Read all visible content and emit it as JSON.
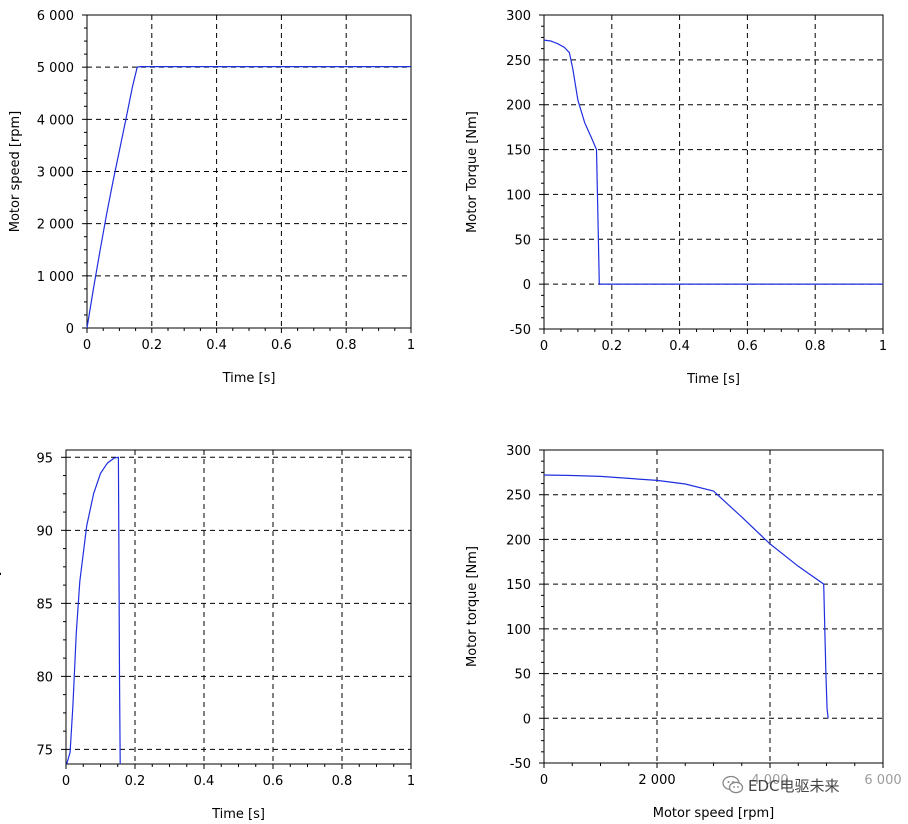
{
  "chart_data": [
    {
      "type": "line",
      "xlabel": "Time [s]",
      "ylabel": "Motor speed [rpm]",
      "xlim": [
        0,
        1
      ],
      "ylim": [
        0,
        6000
      ],
      "xticks": [
        0,
        0.2,
        0.4,
        0.6,
        0.8,
        1
      ],
      "xtick_labels": [
        "0",
        "0.2",
        "0.4",
        "0.6",
        "0.8",
        "1"
      ],
      "yticks": [
        0,
        1000,
        2000,
        3000,
        4000,
        5000,
        6000
      ],
      "ytick_labels": [
        "0",
        "1 000",
        "2 000",
        "3 000",
        "4 000",
        "5 000",
        "6 000"
      ],
      "grid": true,
      "series": [
        {
          "name": "speed",
          "color": "#1f2fe0",
          "x": [
            0,
            0.02,
            0.04,
            0.06,
            0.08,
            0.1,
            0.12,
            0.14,
            0.155,
            0.165,
            0.2,
            0.4,
            0.6,
            0.8,
            1.0
          ],
          "y": [
            0,
            760,
            1480,
            2160,
            2800,
            3400,
            4000,
            4620,
            5000,
            5010,
            5010,
            5010,
            5010,
            5010,
            5010
          ]
        }
      ]
    },
    {
      "type": "line",
      "xlabel": "Time [s]",
      "ylabel": "Motor Torque [Nm]",
      "xlim": [
        0,
        1
      ],
      "ylim": [
        -50,
        300
      ],
      "xticks": [
        0,
        0.2,
        0.4,
        0.6,
        0.8,
        1
      ],
      "xtick_labels": [
        "0",
        "0.2",
        "0.4",
        "0.6",
        "0.8",
        "1"
      ],
      "yticks": [
        -50,
        0,
        50,
        100,
        150,
        200,
        250,
        300
      ],
      "ytick_labels": [
        "-50",
        "0",
        "50",
        "100",
        "150",
        "200",
        "250",
        "300"
      ],
      "grid": true,
      "series": [
        {
          "name": "torque",
          "color": "#1f2fe0",
          "x": [
            0,
            0.02,
            0.04,
            0.06,
            0.075,
            0.085,
            0.1,
            0.12,
            0.14,
            0.155,
            0.16,
            0.163,
            0.2,
            0.6,
            1.0
          ],
          "y": [
            272,
            271,
            268,
            264,
            258,
            240,
            205,
            180,
            163,
            150,
            60,
            0,
            0,
            0,
            0
          ]
        }
      ]
    },
    {
      "type": "line",
      "xlabel": "Time [s]",
      "ylabel": "Motor efficiency [%]",
      "xlim": [
        0,
        1
      ],
      "ylim": [
        74,
        95.5
      ],
      "xticks": [
        0,
        0.2,
        0.4,
        0.6,
        0.8,
        1
      ],
      "xtick_labels": [
        "0",
        "0.2",
        "0.4",
        "0.6",
        "0.8",
        "1"
      ],
      "yticks": [
        75,
        80,
        85,
        90,
        95
      ],
      "ytick_labels": [
        "75",
        "80",
        "85",
        "90",
        "95"
      ],
      "grid": true,
      "series": [
        {
          "name": "efficiency",
          "color": "#1f2fe0",
          "x": [
            0.002,
            0.012,
            0.02,
            0.03,
            0.04,
            0.06,
            0.08,
            0.1,
            0.12,
            0.14,
            0.152,
            0.153,
            0.155,
            0.157
          ],
          "y": [
            74,
            74.8,
            78,
            83,
            86.5,
            90.3,
            92.5,
            93.9,
            94.6,
            94.95,
            95,
            90,
            80,
            74
          ]
        }
      ]
    },
    {
      "type": "line",
      "xlabel": "Motor speed [rpm]",
      "ylabel": "Motor torque [Nm]",
      "xlim": [
        0,
        6000
      ],
      "ylim": [
        -50,
        300
      ],
      "xticks": [
        0,
        2000,
        4000,
        6000
      ],
      "xtick_labels": [
        "0",
        "2 000",
        "4 000",
        "6 000"
      ],
      "yticks": [
        -50,
        0,
        50,
        100,
        150,
        200,
        250,
        300
      ],
      "ytick_labels": [
        "-50",
        "0",
        "50",
        "100",
        "150",
        "200",
        "250",
        "300"
      ],
      "grid": true,
      "series": [
        {
          "name": "torque-speed",
          "color": "#1f2fe0",
          "x": [
            0,
            500,
            1000,
            2000,
            2500,
            3000,
            3500,
            4000,
            4500,
            4950,
            4970,
            4990,
            5010,
            5030
          ],
          "y": [
            272,
            271.5,
            270.5,
            266,
            262,
            254,
            225,
            195,
            170,
            150,
            100,
            50,
            10,
            0
          ]
        }
      ]
    }
  ],
  "watermark": {
    "text": "EDC电驱未来",
    "icon": "wechat-icon"
  }
}
